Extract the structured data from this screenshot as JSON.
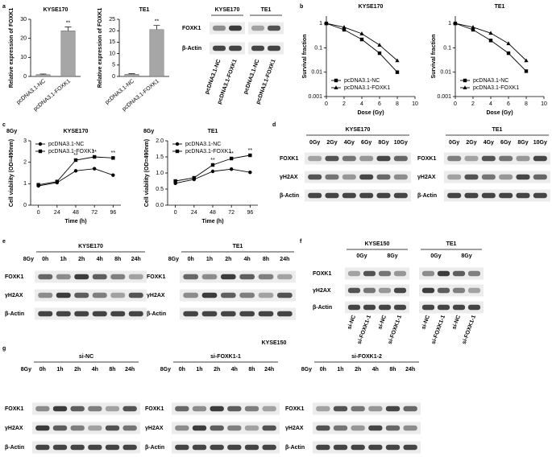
{
  "panels": [
    "a",
    "b",
    "c",
    "d",
    "e",
    "f",
    "g"
  ],
  "chart_data": [
    {
      "type": "bar",
      "title": "KYSE170",
      "ylabel": "Relative expression of FOXK1",
      "categories": [
        "pcDNA3.1-NC",
        "pcDNA3.1-FOXK1"
      ],
      "values": [
        1,
        24
      ],
      "errors": [
        0.3,
        2
      ],
      "significance": [
        null,
        "**"
      ],
      "color": "#a6a6a6",
      "ylim": [
        0,
        30
      ],
      "yticks": [
        0,
        10,
        20,
        30
      ]
    },
    {
      "type": "bar",
      "title": "TE1",
      "ylabel": "Relative expression of FOXK1",
      "categories": [
        "pcDNA3.1-NC",
        "pcDNA3.1-FOXK1"
      ],
      "values": [
        1,
        20.5
      ],
      "errors": [
        0.2,
        1.8
      ],
      "significance": [
        null,
        "**"
      ],
      "color": "#a6a6a6",
      "ylim": [
        0,
        25
      ],
      "yticks": [
        0,
        5,
        10,
        15,
        20,
        25
      ]
    },
    {
      "type": "line",
      "title": "KYSE170",
      "xlabel": "Dose (Gy)",
      "ylabel": "Survival fraction",
      "x": [
        0,
        2,
        4,
        6,
        8
      ],
      "series": [
        {
          "name": "pcDNA3.1-NC",
          "marker": "square",
          "color": "#000000",
          "values": [
            1,
            0.55,
            0.22,
            0.06,
            0.01
          ]
        },
        {
          "name": "pcDNA3.1-FOXK1",
          "marker": "triangle",
          "color": "#000000",
          "values": [
            1,
            0.7,
            0.38,
            0.13,
            0.03
          ]
        }
      ],
      "log_y": true,
      "xlim": [
        0,
        10
      ],
      "xticks": [
        0,
        2,
        4,
        6,
        8,
        10
      ],
      "ylim": [
        0.001,
        2
      ],
      "yticks": [
        0.001,
        0.01,
        0.1,
        1
      ],
      "legend": "lower left"
    },
    {
      "type": "line",
      "title": "TE1",
      "xlabel": "Dose (Gy)",
      "ylabel": "Survival fraction",
      "x": [
        0,
        2,
        4,
        6,
        8
      ],
      "series": [
        {
          "name": "pcDNA3.1-NC",
          "marker": "square",
          "color": "#000000",
          "values": [
            1,
            0.55,
            0.2,
            0.06,
            0.011
          ]
        },
        {
          "name": "pcDNA3.1-FOXK1",
          "marker": "triangle",
          "color": "#000000",
          "values": [
            1,
            0.7,
            0.4,
            0.15,
            0.03
          ]
        }
      ],
      "log_y": true,
      "xlim": [
        0,
        10
      ],
      "xticks": [
        0,
        2,
        4,
        6,
        8,
        10
      ],
      "ylim": [
        0.001,
        2
      ],
      "yticks": [
        0.001,
        0.01,
        0.1,
        1
      ],
      "legend": "lower left"
    },
    {
      "type": "line",
      "label": "8Gy",
      "title": "KYSE170",
      "xlabel": "Time (h)",
      "ylabel": "Cell viability (OD=490nm)",
      "x": [
        0,
        24,
        48,
        72,
        96
      ],
      "series": [
        {
          "name": "pcDNA3.1-NC",
          "marker": "circle",
          "color": "#000000",
          "values": [
            0.9,
            1.05,
            1.6,
            1.7,
            1.4
          ]
        },
        {
          "name": "pcDNA3.1-FOXK1",
          "marker": "square",
          "color": "#000000",
          "values": [
            0.95,
            1.1,
            2.1,
            2.25,
            2.2
          ]
        }
      ],
      "significance": [
        null,
        null,
        "**",
        "**",
        "**"
      ],
      "xlim": [
        -10,
        106
      ],
      "xticks": [
        0,
        24,
        48,
        72,
        96
      ],
      "ylim": [
        0,
        3
      ],
      "yticks": [
        0,
        1,
        2,
        3
      ],
      "legend": "upper left"
    },
    {
      "type": "line",
      "label": "8Gy",
      "title": "TE1",
      "xlabel": "Time (h)",
      "ylabel": "Cell viability (OD=490nm)",
      "x": [
        0,
        24,
        48,
        72,
        96
      ],
      "series": [
        {
          "name": "pcDNA3.1-NC",
          "marker": "circle",
          "color": "#000000",
          "values": [
            0.68,
            0.8,
            1.05,
            1.12,
            1.02
          ]
        },
        {
          "name": "pcDNA3.1-FOXK1",
          "marker": "square",
          "color": "#000000",
          "values": [
            0.75,
            0.85,
            1.25,
            1.45,
            1.55
          ]
        }
      ],
      "significance": [
        null,
        null,
        "**",
        "**",
        "**"
      ],
      "xlim": [
        -10,
        106
      ],
      "xticks": [
        0,
        24,
        48,
        72,
        96
      ],
      "ylim": [
        0,
        2
      ],
      "yticks": [
        {
          "value": 0,
          "label": "0.0"
        },
        0.5,
        {
          "value": 1,
          "label": "1.0"
        },
        1.5,
        {
          "value": 2,
          "label": "2.0"
        }
      ],
      "legend": "upper left"
    }
  ],
  "blots": {
    "a": {
      "rows": [
        "FOXK1",
        "β-Actin"
      ],
      "groups": [
        {
          "title": "KYSE170",
          "lanes": [
            "pcDNA3.1-NC",
            "pcDNA3.1-FOXK1"
          ]
        },
        {
          "title": "TE1",
          "lanes": [
            "pcDNA3.1-NC",
            "pcDNA3.1-FOXK1"
          ]
        }
      ]
    },
    "d": {
      "groups": [
        {
          "title": "KYSE170",
          "lanes": [
            "0Gy",
            "2Gy",
            "4Gy",
            "6Gy",
            "8Gy",
            "10Gy"
          ],
          "rows": [
            "FOXK1",
            "γH2AX",
            "β-Actin"
          ]
        },
        {
          "title": "TE1",
          "lanes": [
            "0Gy",
            "2Gy",
            "4Gy",
            "6Gy",
            "8Gy",
            "10Gy"
          ],
          "rows": [
            "FOXK1",
            "γH2AX",
            "β-Actin"
          ]
        }
      ]
    },
    "e": {
      "groups": [
        {
          "title": "KYSE170",
          "treatment": "8Gy",
          "lanes": [
            "0h",
            "1h",
            "2h",
            "4h",
            "8h",
            "24h"
          ],
          "rows": [
            "FOXK1",
            "γH2AX",
            "β-Actin"
          ]
        },
        {
          "title": "TE1",
          "treatment": "8Gy",
          "lanes": [
            "0h",
            "1h",
            "2h",
            "4h",
            "8h",
            "24h"
          ],
          "rows": [
            "FOXK1",
            "γH2AX",
            "β-Actin"
          ]
        }
      ]
    },
    "f": {
      "rows": [
        "FOXK1",
        "γH2AX",
        "β-Actin"
      ],
      "groups": [
        {
          "title": "KYSE150",
          "conditions": [
            "0Gy",
            "8Gy"
          ],
          "lanes": [
            "si-NC",
            "si-FOXK1-1",
            "si-NC",
            "si-FOXK1-1"
          ]
        },
        {
          "title": "TE1",
          "conditions": [
            "0Gy",
            "8Gy"
          ],
          "lanes": [
            "si-NC",
            "si-FOXK1-1",
            "si-NC",
            "si-FOXK1-1"
          ]
        }
      ]
    },
    "g": {
      "title": "KYSE150",
      "groups": [
        {
          "title": "si-NC",
          "treatment": "8Gy",
          "lanes": [
            "0h",
            "1h",
            "2h",
            "4h",
            "8h",
            "24h"
          ],
          "rows": [
            "FOXK1",
            "γH2AX",
            "β-Actin"
          ]
        },
        {
          "title": "si-FOXK1-1",
          "treatment": "8Gy",
          "lanes": [
            "0h",
            "1h",
            "2h",
            "4h",
            "8h",
            "24h"
          ],
          "rows": [
            "FOXK1",
            "γH2AX",
            "β-Actin"
          ]
        },
        {
          "title": "si-FOXK1-2",
          "treatment": "8Gy",
          "lanes": [
            "0h",
            "1h",
            "2h",
            "4h",
            "8h",
            "24h"
          ],
          "rows": [
            "FOXK1",
            "γH2AX",
            "β-Actin"
          ]
        }
      ]
    }
  }
}
